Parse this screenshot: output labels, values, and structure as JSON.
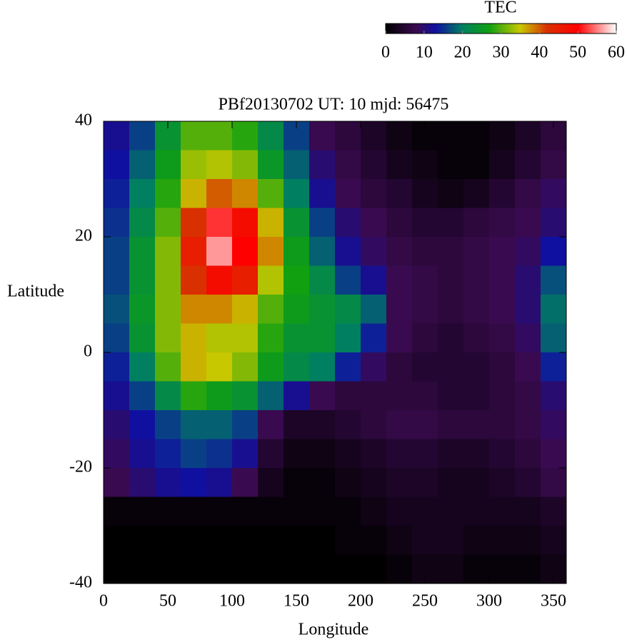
{
  "chart_data": {
    "type": "heatmap",
    "title": "PBf20130702  UT: 10  mjd: 56475",
    "x_label": "Longitude",
    "y_label": "Latitude",
    "colorbar_label": "TEC",
    "x": [
      10,
      30,
      50,
      70,
      90,
      110,
      130,
      150,
      170,
      190,
      210,
      230,
      250,
      270,
      290,
      310,
      330,
      350
    ],
    "y": [
      37.5,
      32.5,
      27.5,
      22.5,
      17.5,
      12.5,
      7.5,
      2.5,
      -2.5,
      -7.5,
      -12.5,
      -17.5,
      -22.5,
      -27.5,
      -32.5,
      -37.5
    ],
    "z": [
      [
        12,
        16,
        24,
        30,
        30,
        28,
        22,
        16,
        8,
        6,
        4,
        2,
        1,
        1,
        1,
        2,
        4,
        6
      ],
      [
        13,
        18,
        26,
        33,
        34,
        32,
        25,
        18,
        10,
        7,
        5,
        3,
        2,
        1,
        1,
        3,
        5,
        7
      ],
      [
        14,
        20,
        28,
        36,
        40,
        38,
        30,
        20,
        12,
        8,
        6,
        5,
        3,
        2,
        3,
        5,
        7,
        9
      ],
      [
        15,
        22,
        30,
        42,
        52,
        48,
        36,
        24,
        16,
        10,
        8,
        6,
        5,
        5,
        6,
        7,
        8,
        10
      ],
      [
        16,
        24,
        32,
        45,
        56,
        50,
        38,
        26,
        18,
        12,
        9,
        7,
        6,
        6,
        7,
        8,
        9,
        13
      ],
      [
        16,
        24,
        32,
        42,
        48,
        45,
        34,
        27,
        22,
        16,
        12,
        8,
        7,
        6,
        7,
        8,
        10,
        17
      ],
      [
        17,
        25,
        32,
        38,
        38,
        36,
        30,
        26,
        24,
        22,
        18,
        8,
        7,
        6,
        7,
        8,
        10,
        19
      ],
      [
        16,
        24,
        32,
        36,
        34,
        34,
        28,
        24,
        24,
        20,
        14,
        8,
        6,
        5,
        6,
        7,
        9,
        18
      ],
      [
        14,
        20,
        30,
        36,
        35,
        32,
        26,
        22,
        20,
        14,
        9,
        6,
        5,
        5,
        5,
        6,
        8,
        14
      ],
      [
        12,
        16,
        22,
        28,
        26,
        24,
        18,
        12,
        8,
        6,
        6,
        6,
        6,
        5,
        5,
        6,
        7,
        10
      ],
      [
        10,
        13,
        16,
        18,
        18,
        16,
        8,
        4,
        4,
        5,
        6,
        7,
        7,
        6,
        6,
        6,
        7,
        9
      ],
      [
        9,
        12,
        14,
        16,
        15,
        12,
        5,
        2,
        2,
        3,
        4,
        5,
        5,
        4,
        4,
        5,
        6,
        8
      ],
      [
        8,
        10,
        12,
        13,
        12,
        8,
        3,
        1,
        1,
        2,
        3,
        4,
        4,
        3,
        3,
        4,
        5,
        7
      ],
      [
        1,
        1,
        1,
        1,
        1,
        1,
        1,
        1,
        1,
        1,
        2,
        3,
        3,
        3,
        3,
        3,
        3,
        4
      ],
      [
        0,
        0,
        0,
        0,
        0,
        0,
        0,
        0,
        0,
        1,
        1,
        2,
        3,
        3,
        2,
        2,
        2,
        3
      ],
      [
        0,
        0,
        0,
        0,
        0,
        0,
        0,
        0,
        0,
        0,
        0,
        1,
        2,
        2,
        1,
        1,
        1,
        2
      ]
    ],
    "xlim": [
      0,
      360
    ],
    "ylim": [
      -40,
      40
    ],
    "xticks": [
      0,
      50,
      100,
      150,
      200,
      250,
      300,
      350
    ],
    "yticks": [
      -40,
      -20,
      0,
      20,
      40
    ],
    "clim": [
      0,
      60
    ],
    "cticks": [
      0,
      10,
      20,
      30,
      40,
      50,
      60
    ],
    "colormap": [
      [
        0,
        "#000000"
      ],
      [
        8,
        "#3a0a50"
      ],
      [
        13,
        "#1010a0"
      ],
      [
        20,
        "#008060"
      ],
      [
        27,
        "#10a010"
      ],
      [
        35,
        "#c8c800"
      ],
      [
        42,
        "#d83000"
      ],
      [
        50,
        "#ff0000"
      ],
      [
        60,
        "#ffffff"
      ]
    ]
  }
}
